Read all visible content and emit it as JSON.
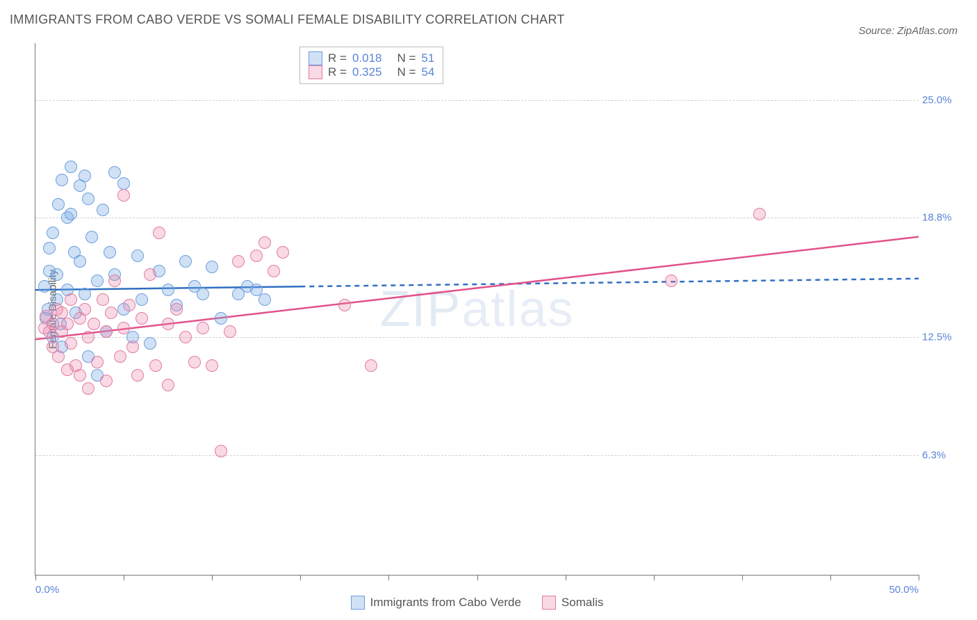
{
  "title": "IMMIGRANTS FROM CABO VERDE VS SOMALI FEMALE DISABILITY CORRELATION CHART",
  "source": "Source: ZipAtlas.com",
  "watermark": "ZIPatlas",
  "ylabel": "Female Disability",
  "chart": {
    "type": "scatter-with-trend",
    "x_domain": [
      0,
      50
    ],
    "y_domain": [
      0,
      28
    ],
    "x_ticks_minor": [
      0,
      5,
      10,
      15,
      20,
      25,
      30,
      35,
      40,
      45,
      50
    ],
    "x_tick_labels": [
      {
        "x": 0,
        "text": "0.0%",
        "anchor": "start"
      },
      {
        "x": 50,
        "text": "50.0%",
        "anchor": "end"
      }
    ],
    "y_gridlines": [
      6.3,
      12.5,
      18.8,
      25.0
    ],
    "y_tick_labels": [
      "6.3%",
      "12.5%",
      "18.8%",
      "25.0%"
    ],
    "marker_radius": 9,
    "marker_stroke_width": 1.5,
    "grid_color": "#d0d0d0",
    "axis_color": "#777777",
    "background": "#ffffff",
    "series": [
      {
        "id": "cabo",
        "label": "Immigrants from Cabo Verde",
        "fill": "rgba(120,170,230,0.35)",
        "stroke": "#6a9edc",
        "R": "0.018",
        "N": "51",
        "trend": {
          "y0": 15.0,
          "y1": 15.6,
          "solid_until_x": 15,
          "color": "#2f6fc0",
          "width": 2.5
        },
        "points": [
          [
            0.5,
            15.2
          ],
          [
            0.6,
            13.5
          ],
          [
            0.7,
            14.0
          ],
          [
            0.8,
            16.0
          ],
          [
            0.8,
            17.2
          ],
          [
            1.0,
            12.5
          ],
          [
            1.0,
            18.0
          ],
          [
            1.2,
            14.5
          ],
          [
            1.2,
            15.8
          ],
          [
            1.3,
            19.5
          ],
          [
            1.4,
            13.2
          ],
          [
            1.5,
            20.8
          ],
          [
            1.5,
            12.0
          ],
          [
            1.8,
            18.8
          ],
          [
            1.8,
            15.0
          ],
          [
            2.0,
            21.5
          ],
          [
            2.0,
            19.0
          ],
          [
            2.2,
            17.0
          ],
          [
            2.3,
            13.8
          ],
          [
            2.5,
            20.5
          ],
          [
            2.5,
            16.5
          ],
          [
            2.8,
            14.8
          ],
          [
            2.8,
            21.0
          ],
          [
            3.0,
            11.5
          ],
          [
            3.0,
            19.8
          ],
          [
            3.2,
            17.8
          ],
          [
            3.5,
            10.5
          ],
          [
            3.5,
            15.5
          ],
          [
            3.8,
            19.2
          ],
          [
            4.0,
            12.8
          ],
          [
            4.2,
            17.0
          ],
          [
            4.5,
            15.8
          ],
          [
            4.5,
            21.2
          ],
          [
            5.0,
            14.0
          ],
          [
            5.0,
            20.6
          ],
          [
            5.5,
            12.5
          ],
          [
            5.8,
            16.8
          ],
          [
            6.0,
            14.5
          ],
          [
            6.5,
            12.2
          ],
          [
            7.0,
            16.0
          ],
          [
            7.5,
            15.0
          ],
          [
            8.0,
            14.2
          ],
          [
            8.5,
            16.5
          ],
          [
            9.0,
            15.2
          ],
          [
            9.5,
            14.8
          ],
          [
            10.0,
            16.2
          ],
          [
            10.5,
            13.5
          ],
          [
            11.5,
            14.8
          ],
          [
            12.0,
            15.2
          ],
          [
            12.5,
            15.0
          ],
          [
            13.0,
            14.5
          ]
        ]
      },
      {
        "id": "somali",
        "label": "Somalis",
        "fill": "rgba(235,130,165,0.30)",
        "stroke": "#e07ba3",
        "R": "0.325",
        "N": "54",
        "trend": {
          "y0": 12.4,
          "y1": 17.8,
          "solid_until_x": 50,
          "color": "#e3518a",
          "width": 2.5
        },
        "points": [
          [
            0.5,
            13.0
          ],
          [
            0.6,
            13.6
          ],
          [
            0.8,
            12.8
          ],
          [
            1.0,
            13.2
          ],
          [
            1.0,
            12.0
          ],
          [
            1.2,
            14.0
          ],
          [
            1.3,
            11.5
          ],
          [
            1.5,
            12.8
          ],
          [
            1.5,
            13.8
          ],
          [
            1.8,
            10.8
          ],
          [
            1.8,
            13.2
          ],
          [
            2.0,
            14.5
          ],
          [
            2.0,
            12.2
          ],
          [
            2.3,
            11.0
          ],
          [
            2.5,
            13.5
          ],
          [
            2.5,
            10.5
          ],
          [
            2.8,
            14.0
          ],
          [
            3.0,
            12.5
          ],
          [
            3.0,
            9.8
          ],
          [
            3.3,
            13.2
          ],
          [
            3.5,
            11.2
          ],
          [
            3.8,
            14.5
          ],
          [
            4.0,
            12.8
          ],
          [
            4.0,
            10.2
          ],
          [
            4.3,
            13.8
          ],
          [
            4.5,
            15.5
          ],
          [
            4.8,
            11.5
          ],
          [
            5.0,
            13.0
          ],
          [
            5.0,
            20.0
          ],
          [
            5.3,
            14.2
          ],
          [
            5.5,
            12.0
          ],
          [
            5.8,
            10.5
          ],
          [
            6.0,
            13.5
          ],
          [
            6.5,
            15.8
          ],
          [
            6.8,
            11.0
          ],
          [
            7.0,
            18.0
          ],
          [
            7.5,
            13.2
          ],
          [
            7.5,
            10.0
          ],
          [
            8.0,
            14.0
          ],
          [
            8.5,
            12.5
          ],
          [
            9.0,
            11.2
          ],
          [
            9.5,
            13.0
          ],
          [
            10.0,
            11.0
          ],
          [
            10.5,
            6.5
          ],
          [
            11.0,
            12.8
          ],
          [
            11.5,
            16.5
          ],
          [
            12.5,
            16.8
          ],
          [
            13.0,
            17.5
          ],
          [
            13.5,
            16.0
          ],
          [
            14.0,
            17.0
          ],
          [
            17.5,
            14.2
          ],
          [
            19.0,
            11.0
          ],
          [
            36.0,
            15.5
          ],
          [
            41.0,
            19.0
          ]
        ]
      }
    ]
  }
}
